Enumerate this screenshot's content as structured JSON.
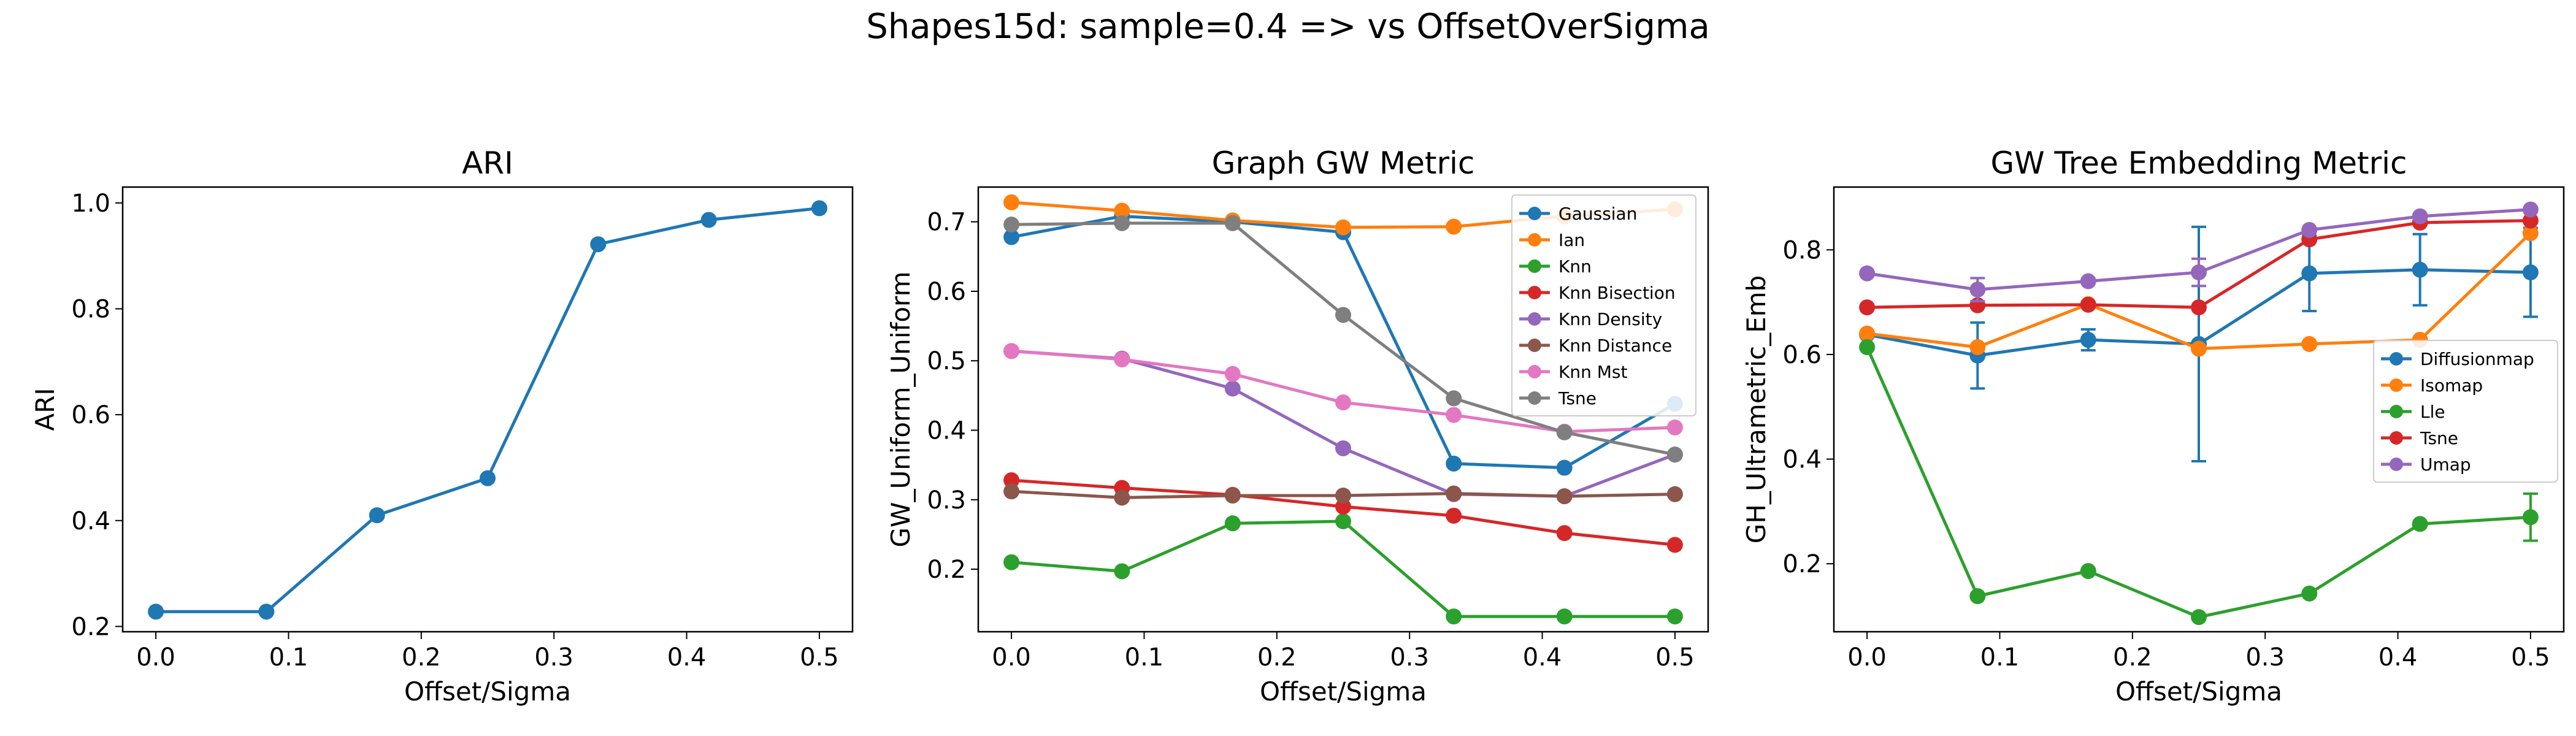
{
  "figure": {
    "suptitle": "Shapes15d: sample=0.4 => vs OffsetOverSigma"
  },
  "chart_data": [
    {
      "type": "line",
      "title": "ARI",
      "xlabel": "Offset/Sigma",
      "ylabel": "ARI",
      "xlim": [
        -0.025,
        0.525
      ],
      "ylim": [
        0.19,
        1.03
      ],
      "xticks": [
        0.0,
        0.1,
        0.2,
        0.3,
        0.4,
        0.5
      ],
      "xtick_labels": [
        "0.0",
        "0.1",
        "0.2",
        "0.3",
        "0.4",
        "0.5"
      ],
      "yticks": [
        0.2,
        0.4,
        0.6,
        0.8,
        1.0
      ],
      "ytick_labels": [
        "0.2",
        "0.4",
        "0.6",
        "0.8",
        "1.0"
      ],
      "legend": null,
      "x": [
        0.0,
        0.0833,
        0.1667,
        0.25,
        0.3333,
        0.4167,
        0.5
      ],
      "series": [
        {
          "name": "",
          "color": "#1f77b4",
          "values": [
            0.228,
            0.228,
            0.41,
            0.48,
            0.922,
            0.968,
            0.99
          ]
        }
      ]
    },
    {
      "type": "line",
      "title": "Graph GW Metric",
      "xlabel": "Offset/Sigma",
      "ylabel": "GW_Uniform_Uniform",
      "xlim": [
        -0.025,
        0.525
      ],
      "ylim": [
        0.11,
        0.75
      ],
      "xticks": [
        0.0,
        0.1,
        0.2,
        0.3,
        0.4,
        0.5
      ],
      "xtick_labels": [
        "0.0",
        "0.1",
        "0.2",
        "0.3",
        "0.4",
        "0.5"
      ],
      "yticks": [
        0.2,
        0.3,
        0.4,
        0.5,
        0.6,
        0.7
      ],
      "ytick_labels": [
        "0.2",
        "0.3",
        "0.4",
        "0.5",
        "0.6",
        "0.7"
      ],
      "legend": "top-right",
      "x": [
        0.0,
        0.0833,
        0.1667,
        0.25,
        0.3333,
        0.4167,
        0.5
      ],
      "series": [
        {
          "name": "Gaussian",
          "color": "#1f77b4",
          "values": [
            0.678,
            0.708,
            0.7,
            0.685,
            0.352,
            0.346,
            0.438
          ]
        },
        {
          "name": "Ian",
          "color": "#ff7f0e",
          "values": [
            0.728,
            0.716,
            0.702,
            0.692,
            0.693,
            0.708,
            0.718
          ]
        },
        {
          "name": "Knn",
          "color": "#2ca02c",
          "values": [
            0.21,
            0.197,
            0.266,
            0.269,
            0.132,
            0.132,
            0.132
          ]
        },
        {
          "name": "Knn Bisection",
          "color": "#d62728",
          "values": [
            0.328,
            0.317,
            0.307,
            0.29,
            0.277,
            0.252,
            0.235
          ]
        },
        {
          "name": "Knn Density",
          "color": "#9467bd",
          "values": [
            0.514,
            0.503,
            0.46,
            0.374,
            0.308,
            0.305,
            0.365
          ]
        },
        {
          "name": "Knn Distance",
          "color": "#8c564b",
          "values": [
            0.312,
            0.303,
            0.306,
            0.306,
            0.309,
            0.305,
            0.308
          ]
        },
        {
          "name": "Knn Mst",
          "color": "#e377c2",
          "values": [
            0.514,
            0.502,
            0.481,
            0.44,
            0.422,
            0.398,
            0.404
          ]
        },
        {
          "name": "Tsne",
          "color": "#7f7f7f",
          "values": [
            0.696,
            0.698,
            0.698,
            0.566,
            0.446,
            0.397,
            0.365
          ]
        }
      ]
    },
    {
      "type": "line",
      "title": "GW Tree Embedding Metric",
      "xlabel": "Offset/Sigma",
      "ylabel": "GH_Ultrametric_Emb",
      "xlim": [
        -0.025,
        0.525
      ],
      "ylim": [
        0.07,
        0.92
      ],
      "xticks": [
        0.0,
        0.1,
        0.2,
        0.3,
        0.4,
        0.5
      ],
      "xtick_labels": [
        "0.0",
        "0.1",
        "0.2",
        "0.3",
        "0.4",
        "0.5"
      ],
      "yticks": [
        0.2,
        0.4,
        0.6,
        0.8
      ],
      "ytick_labels": [
        "0.2",
        "0.4",
        "0.6",
        "0.8"
      ],
      "legend": "center-right",
      "x": [
        0.0,
        0.0833,
        0.1667,
        0.25,
        0.3333,
        0.4167,
        0.5
      ],
      "series": [
        {
          "name": "Diffusionmap",
          "color": "#1f77b4",
          "values": [
            0.638,
            0.598,
            0.628,
            0.62,
            0.755,
            0.762,
            0.757
          ],
          "errors": [
            0.0,
            0.063,
            0.02,
            0.224,
            0.072,
            0.068,
            0.085
          ]
        },
        {
          "name": "Isomap",
          "color": "#ff7f0e",
          "values": [
            0.64,
            0.614,
            0.696,
            0.611,
            0.62,
            0.628,
            0.832
          ]
        },
        {
          "name": "Lle",
          "color": "#2ca02c",
          "values": [
            0.614,
            0.138,
            0.186,
            0.098,
            0.143,
            0.276,
            0.289
          ],
          "errors": [
            0.0,
            0.0,
            0.0,
            0.0,
            0.0,
            0.0,
            0.045
          ]
        },
        {
          "name": "Tsne",
          "color": "#d62728",
          "values": [
            0.69,
            0.694,
            0.695,
            0.69,
            0.82,
            0.852,
            0.856
          ]
        },
        {
          "name": "Umap",
          "color": "#9467bd",
          "values": [
            0.755,
            0.724,
            0.74,
            0.757,
            0.838,
            0.864,
            0.877
          ],
          "errors": [
            0.0,
            0.022,
            0.0,
            0.026,
            0.0,
            0.0,
            0.0
          ]
        }
      ]
    }
  ]
}
